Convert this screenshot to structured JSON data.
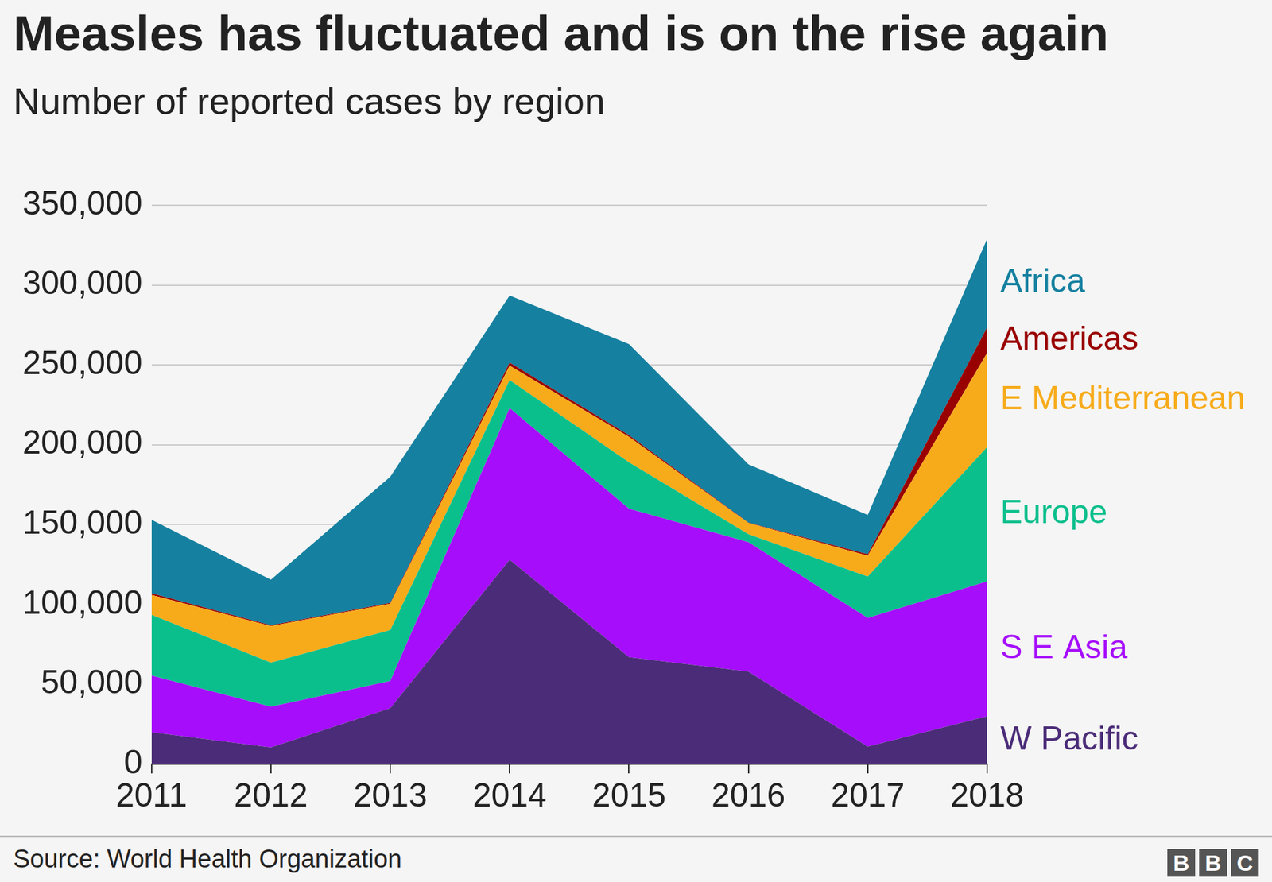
{
  "chart_data": {
    "type": "area",
    "stacked": true,
    "grid": true,
    "title": "Measles has fluctuated and is on the rise again",
    "subtitle": "Number of reported cases by region",
    "source": "Source: World Health Organization",
    "logo": "BBC",
    "categories": [
      "2011",
      "2012",
      "2013",
      "2014",
      "2015",
      "2016",
      "2017",
      "2018"
    ],
    "series": [
      {
        "name": "W Pacific",
        "color": "#4b2c78",
        "values": [
          20000,
          10500,
          35000,
          128000,
          67000,
          58000,
          11000,
          30000
        ]
      },
      {
        "name": "S E Asia",
        "color": "#a60dfb",
        "values": [
          35500,
          25500,
          17000,
          95000,
          93000,
          81000,
          80500,
          84500
        ]
      },
      {
        "name": "Europe",
        "color": "#0bbf8c",
        "values": [
          38000,
          27500,
          32000,
          17500,
          29000,
          5000,
          26000,
          84000
        ]
      },
      {
        "name": "E Mediterranean",
        "color": "#f7ab1a",
        "values": [
          12500,
          23000,
          16500,
          9000,
          16000,
          7000,
          13000,
          59000
        ]
      },
      {
        "name": "Americas",
        "color": "#990000",
        "values": [
          1000,
          500,
          500,
          2000,
          1000,
          300,
          1000,
          16000
        ]
      },
      {
        "name": "Africa",
        "color": "#1580a0",
        "values": [
          46000,
          28500,
          79000,
          42000,
          57000,
          36500,
          24500,
          55500
        ]
      }
    ],
    "ylim": [
      0,
      350000
    ],
    "yticks": [
      0,
      {
        "value": 50000,
        "label": "50,000"
      },
      {
        "value": 100000,
        "label": "100,000"
      },
      {
        "value": 150000,
        "label": "150,000"
      },
      {
        "value": 200000,
        "label": "200,000"
      },
      {
        "value": 250000,
        "label": "250,000"
      },
      {
        "value": 300000,
        "label": "300,000"
      },
      {
        "value": 350000,
        "label": "350,000"
      }
    ]
  }
}
